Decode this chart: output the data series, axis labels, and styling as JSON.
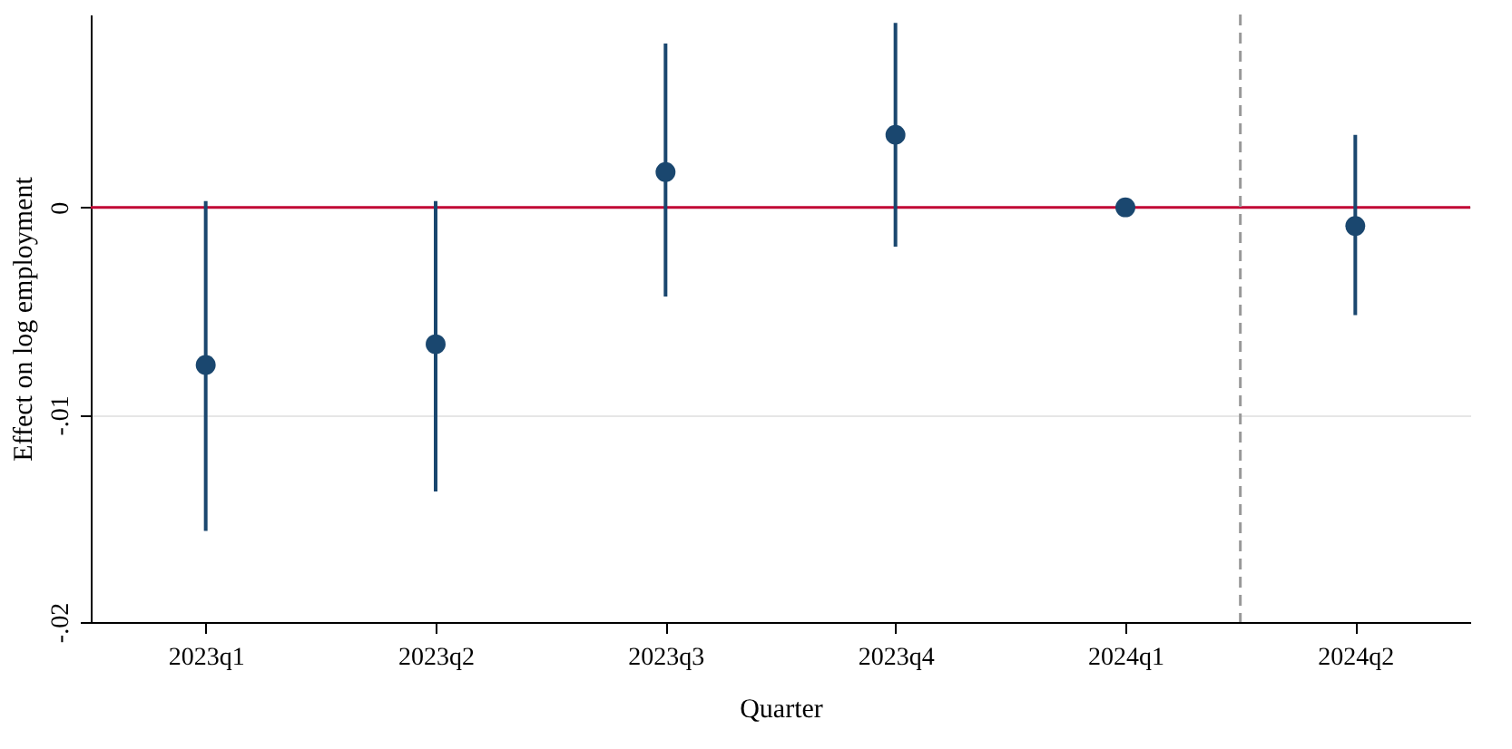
{
  "chart_data": {
    "type": "scatter",
    "xlabel": "Quarter",
    "ylabel": "Effect on log employment",
    "categories": [
      "2023q1",
      "2023q2",
      "2023q3",
      "2023q4",
      "2024q1",
      "2024q2"
    ],
    "ylim": [
      -0.02,
      0.0093
    ],
    "yticks": [
      {
        "value": -0.02,
        "label": "-.02"
      },
      {
        "value": -0.01,
        "label": "-.01"
      },
      {
        "value": 0,
        "label": "0"
      }
    ],
    "series": [
      {
        "color": "#1a476f",
        "values": [
          -0.0076,
          -0.0066,
          0.0017,
          0.0035,
          0,
          -0.0009
        ],
        "errors": [
          [
            -0.0156,
            0.0003
          ],
          [
            -0.0137,
            0.0003
          ],
          [
            -0.0043,
            0.0079
          ],
          [
            -0.0019,
            0.0089
          ],
          null,
          [
            -0.0052,
            0.0035
          ]
        ]
      }
    ],
    "ref_lines": [
      {
        "axis": "y",
        "value": 0,
        "color": "#c10534",
        "line_style": "solid"
      }
    ],
    "grid": "y",
    "marker": "circle"
  }
}
